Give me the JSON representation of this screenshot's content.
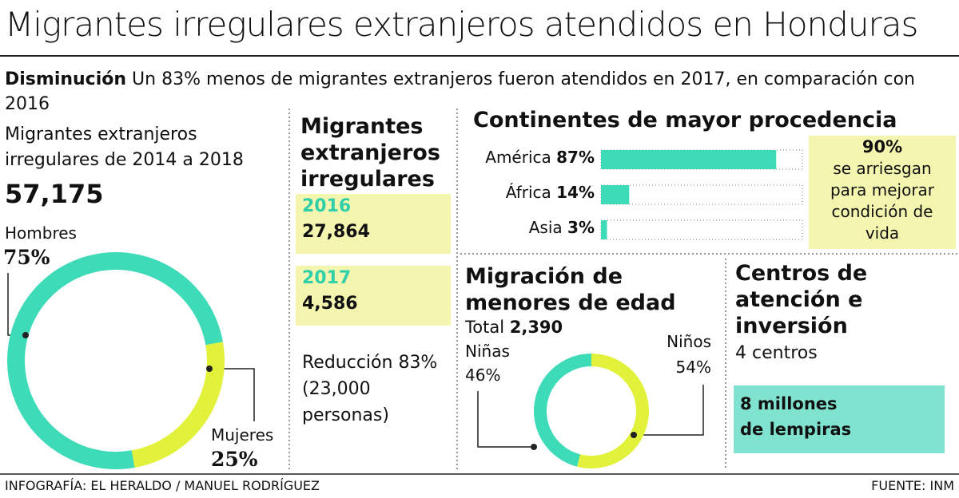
{
  "header": {
    "title": "Migrantes irregulares extranjeros atendidos en Honduras",
    "lead_bold": "Disminución",
    "lead": "Un 83% menos de migrantes extranjeros fueron atendidos en 2017, en comparación con 2016"
  },
  "total": {
    "label_lines": [
      "Migrantes extranjeros",
      "irregulares de 2014 a 2018"
    ],
    "value": "57,175"
  },
  "yearly": {
    "title_lines": [
      "Migrantes",
      "extranjeros",
      "irregulares"
    ],
    "rows": [
      {
        "year": "2016",
        "count": "27,864"
      },
      {
        "year": "2017",
        "count": "4,586"
      }
    ],
    "reduction_lines": [
      "Reducción 83%",
      "(23,000",
      "personas)"
    ]
  },
  "callout": {
    "value": "90%",
    "lines": [
      "se arriesgan",
      "para mejorar",
      "condición de",
      "vida"
    ]
  },
  "centers": {
    "title_lines": [
      "Centros de",
      "atención e",
      "inversión"
    ],
    "count": "4 centros",
    "investment_lines": [
      "8 millones",
      "de lempiras"
    ]
  },
  "footer": {
    "credit": "INFOGRAFÍA: EL HERALDO / MANUEL RODRÍGUEZ",
    "source": "FUENTE: INM"
  },
  "chart_data": [
    {
      "type": "donut",
      "categories": [
        "Hombres",
        "Mujeres"
      ],
      "values": [
        75,
        25
      ],
      "value_labels": [
        "75%",
        "25%"
      ],
      "colors": [
        "#3ddbb8",
        "#e2f23a"
      ]
    },
    {
      "type": "bar",
      "title": "Continentes de mayor procedencia",
      "categories": [
        "América",
        "África",
        "Asia"
      ],
      "values": [
        87,
        14,
        3
      ],
      "value_labels": [
        "87%",
        "14%",
        "3%"
      ],
      "color": "#3ddbb8",
      "xlim": [
        0,
        100
      ]
    },
    {
      "type": "donut",
      "title_lines": [
        "Migración de",
        "menores de edad"
      ],
      "total_label": "Total",
      "total_value": "2,390",
      "categories": [
        "Niñas",
        "Niños"
      ],
      "values": [
        46,
        54
      ],
      "value_labels": [
        "46%",
        "54%"
      ],
      "colors": [
        "#3ddbb8",
        "#e2f23a"
      ]
    }
  ]
}
